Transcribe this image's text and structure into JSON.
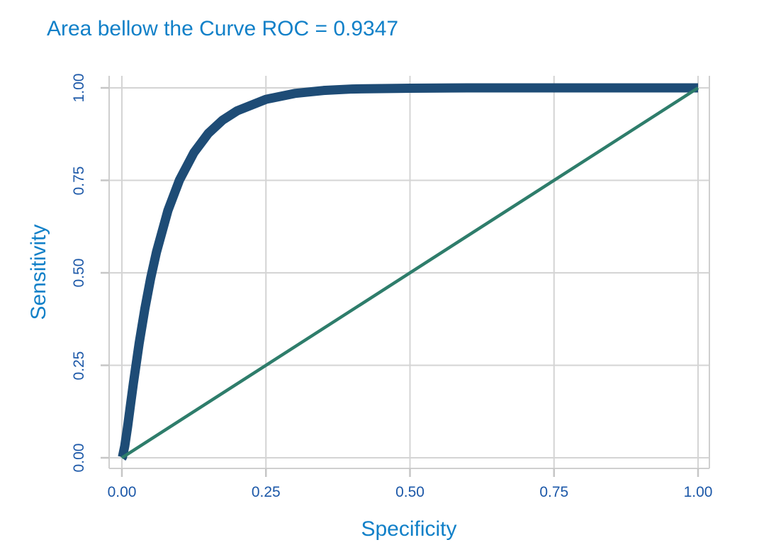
{
  "chart_data": {
    "type": "line",
    "title": "Area bellow the Curve ROC = 0.9347",
    "xlabel": "Specificity",
    "ylabel": "Sensitivity",
    "auc_label_value": "0.9347",
    "xlim": [
      0,
      1
    ],
    "ylim": [
      0,
      1
    ],
    "x_ticks": [
      0,
      0.25,
      0.5,
      0.75,
      1
    ],
    "y_ticks": [
      0,
      0.25,
      0.5,
      0.75,
      1
    ],
    "x_tick_labels": [
      "0.00",
      "0.25",
      "0.50",
      "0.75",
      "1.00"
    ],
    "y_tick_labels": [
      "0.00",
      "0.25",
      "0.50",
      "0.75",
      "1.00"
    ],
    "grid": true,
    "legend_position": "none",
    "series": [
      {
        "name": "roc-curve",
        "color": "#1E4C76",
        "stroke_width": 13,
        "points": [
          [
            0.0,
            0.0
          ],
          [
            0.001,
            0.002
          ],
          [
            0.005,
            0.032
          ],
          [
            0.01,
            0.085
          ],
          [
            0.015,
            0.144
          ],
          [
            0.02,
            0.202
          ],
          [
            0.03,
            0.31
          ],
          [
            0.04,
            0.404
          ],
          [
            0.05,
            0.486
          ],
          [
            0.06,
            0.556
          ],
          [
            0.08,
            0.669
          ],
          [
            0.1,
            0.751
          ],
          [
            0.125,
            0.825
          ],
          [
            0.15,
            0.877
          ],
          [
            0.175,
            0.913
          ],
          [
            0.2,
            0.938
          ],
          [
            0.25,
            0.969
          ],
          [
            0.3,
            0.985
          ],
          [
            0.35,
            0.993
          ],
          [
            0.4,
            0.997
          ],
          [
            0.45,
            0.998
          ],
          [
            0.5,
            0.999
          ],
          [
            0.6,
            1.0
          ],
          [
            0.7,
            1.0
          ],
          [
            0.8,
            1.0
          ],
          [
            0.9,
            1.0
          ],
          [
            1.0,
            1.0
          ]
        ]
      },
      {
        "name": "chance-diagonal",
        "color": "#2E7D6B",
        "stroke_width": 4.5,
        "points": [
          [
            0,
            0
          ],
          [
            1,
            1
          ]
        ]
      }
    ]
  },
  "colors": {
    "title_text": "#1180C8",
    "axis_title_text": "#1180C8",
    "tick_label_text": "#1C58A8",
    "gridline": "#D4D4D4",
    "panel_border": "#CFCFCF",
    "tick_mark": "#C6C6C6",
    "background": "#FFFFFF"
  }
}
